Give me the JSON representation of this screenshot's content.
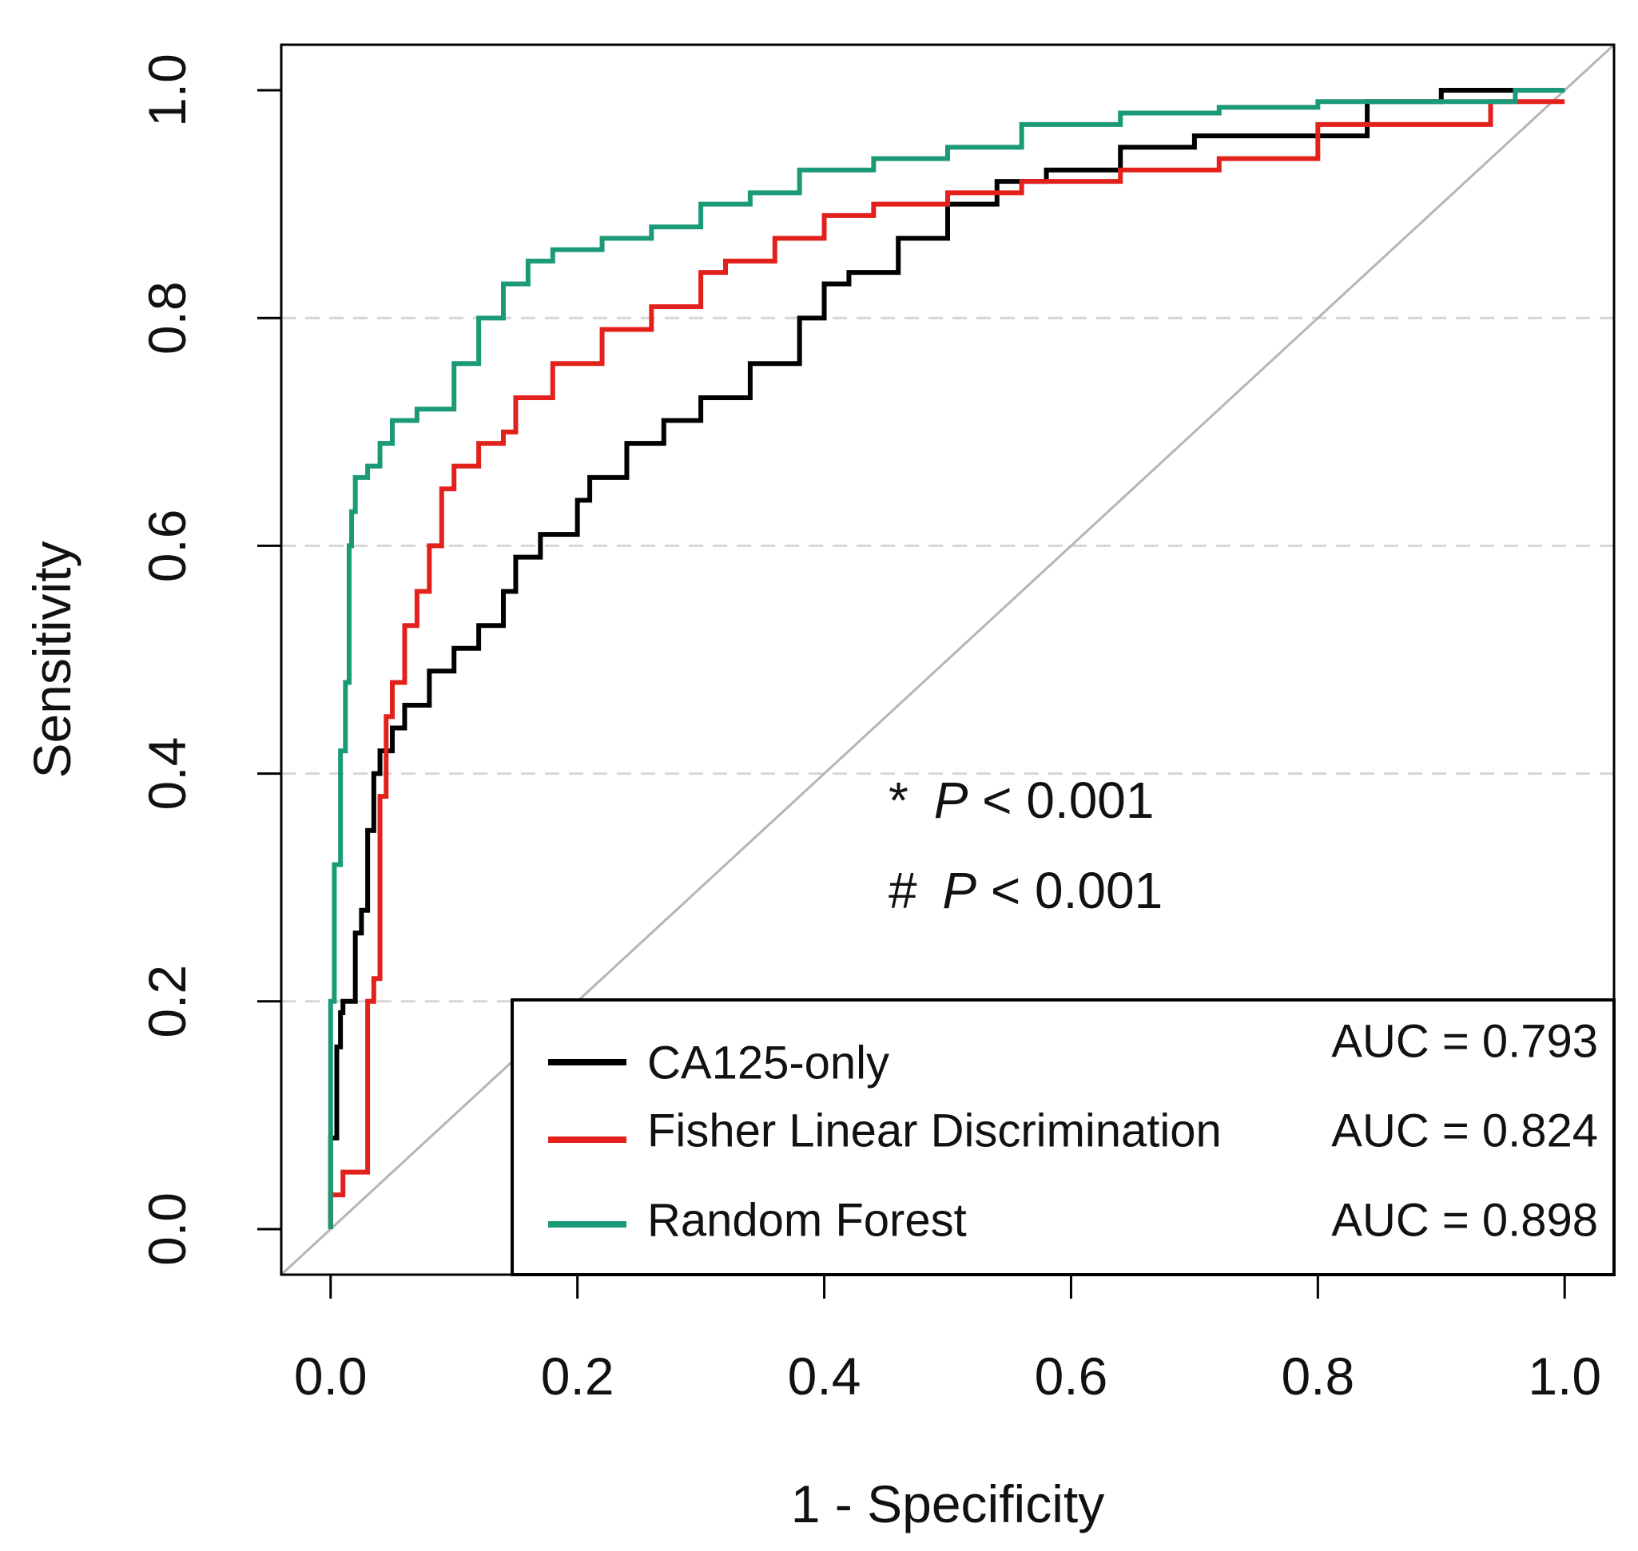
{
  "chart_data": {
    "type": "line",
    "xlabel": "1 - Specificity",
    "ylabel": "Sensitivity",
    "xlim": [
      -0.04,
      1.04
    ],
    "ylim": [
      -0.04,
      1.04
    ],
    "x_ticks": [
      "0.0",
      "0.2",
      "0.4",
      "0.6",
      "0.8",
      "1.0"
    ],
    "y_ticks": [
      "0.0",
      "0.2",
      "0.4",
      "0.6",
      "0.8",
      "1.0"
    ],
    "grid": "horizontal dashed at 0.2, 0.4, 0.6, 0.8",
    "reference_line": "diagonal y = x",
    "legend_position": "bottom-right",
    "annotations": [
      {
        "symbol": "*",
        "p": "P",
        "rest": " < 0.001"
      },
      {
        "symbol": "#",
        "p": "P",
        "rest": " < 0.001"
      }
    ],
    "series": [
      {
        "name": "CA125-only",
        "auc_label": "AUC = 0.793",
        "color": "#000000",
        "points": [
          [
            0,
            0
          ],
          [
            0.005,
            0.08
          ],
          [
            0.008,
            0.16
          ],
          [
            0.01,
            0.19
          ],
          [
            0.02,
            0.2
          ],
          [
            0.025,
            0.26
          ],
          [
            0.03,
            0.28
          ],
          [
            0.035,
            0.35
          ],
          [
            0.04,
            0.4
          ],
          [
            0.05,
            0.42
          ],
          [
            0.06,
            0.44
          ],
          [
            0.08,
            0.46
          ],
          [
            0.1,
            0.49
          ],
          [
            0.12,
            0.51
          ],
          [
            0.14,
            0.53
          ],
          [
            0.15,
            0.56
          ],
          [
            0.17,
            0.59
          ],
          [
            0.2,
            0.61
          ],
          [
            0.21,
            0.64
          ],
          [
            0.24,
            0.66
          ],
          [
            0.27,
            0.69
          ],
          [
            0.3,
            0.71
          ],
          [
            0.34,
            0.73
          ],
          [
            0.38,
            0.76
          ],
          [
            0.4,
            0.8
          ],
          [
            0.42,
            0.83
          ],
          [
            0.46,
            0.84
          ],
          [
            0.5,
            0.87
          ],
          [
            0.54,
            0.9
          ],
          [
            0.58,
            0.92
          ],
          [
            0.64,
            0.93
          ],
          [
            0.7,
            0.95
          ],
          [
            0.76,
            0.96
          ],
          [
            0.84,
            0.96
          ],
          [
            0.9,
            0.99
          ],
          [
            0.96,
            1.0
          ],
          [
            1.0,
            1.0
          ]
        ]
      },
      {
        "name": "Fisher Linear Discrimination",
        "auc_label": "AUC = 0.824",
        "color": "#e3211c",
        "points": [
          [
            0,
            0
          ],
          [
            0.01,
            0.03
          ],
          [
            0.02,
            0.05
          ],
          [
            0.03,
            0.05
          ],
          [
            0.035,
            0.2
          ],
          [
            0.04,
            0.22
          ],
          [
            0.045,
            0.38
          ],
          [
            0.05,
            0.45
          ],
          [
            0.06,
            0.48
          ],
          [
            0.07,
            0.53
          ],
          [
            0.08,
            0.56
          ],
          [
            0.09,
            0.6
          ],
          [
            0.1,
            0.65
          ],
          [
            0.12,
            0.67
          ],
          [
            0.14,
            0.69
          ],
          [
            0.15,
            0.7
          ],
          [
            0.18,
            0.73
          ],
          [
            0.22,
            0.76
          ],
          [
            0.26,
            0.79
          ],
          [
            0.3,
            0.81
          ],
          [
            0.32,
            0.84
          ],
          [
            0.36,
            0.85
          ],
          [
            0.4,
            0.87
          ],
          [
            0.44,
            0.89
          ],
          [
            0.5,
            0.9
          ],
          [
            0.56,
            0.91
          ],
          [
            0.64,
            0.92
          ],
          [
            0.72,
            0.93
          ],
          [
            0.8,
            0.94
          ],
          [
            0.86,
            0.97
          ],
          [
            0.94,
            0.97
          ],
          [
            1.0,
            0.99
          ]
        ]
      },
      {
        "name": "Random Forest",
        "auc_label": "AUC = 0.898",
        "color": "#1a9a76",
        "points": [
          [
            0,
            0
          ],
          [
            0.003,
            0.2
          ],
          [
            0.008,
            0.32
          ],
          [
            0.012,
            0.42
          ],
          [
            0.015,
            0.48
          ],
          [
            0.017,
            0.6
          ],
          [
            0.02,
            0.63
          ],
          [
            0.03,
            0.66
          ],
          [
            0.04,
            0.67
          ],
          [
            0.05,
            0.69
          ],
          [
            0.07,
            0.71
          ],
          [
            0.1,
            0.72
          ],
          [
            0.12,
            0.76
          ],
          [
            0.14,
            0.8
          ],
          [
            0.16,
            0.83
          ],
          [
            0.18,
            0.85
          ],
          [
            0.22,
            0.86
          ],
          [
            0.26,
            0.87
          ],
          [
            0.3,
            0.88
          ],
          [
            0.34,
            0.9
          ],
          [
            0.38,
            0.91
          ],
          [
            0.44,
            0.93
          ],
          [
            0.5,
            0.94
          ],
          [
            0.56,
            0.95
          ],
          [
            0.64,
            0.97
          ],
          [
            0.72,
            0.98
          ],
          [
            0.8,
            0.985
          ],
          [
            0.9,
            0.99
          ],
          [
            0.96,
            0.99
          ],
          [
            1.0,
            1.0
          ]
        ]
      }
    ]
  }
}
